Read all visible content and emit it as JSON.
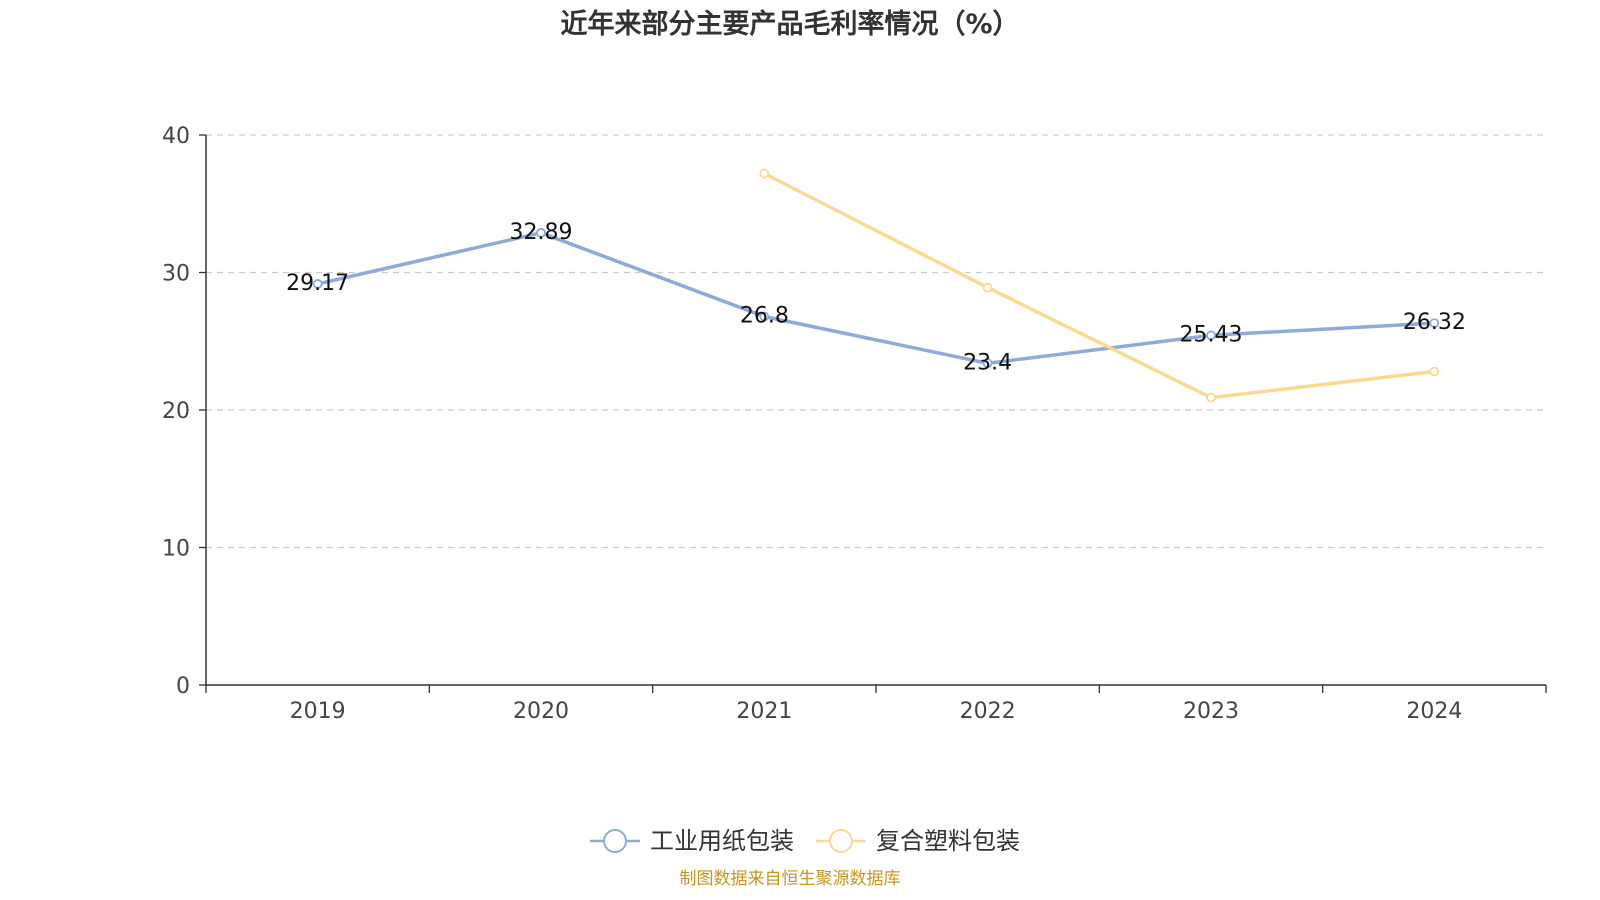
{
  "colors": {
    "series1": "#8faad8",
    "series2": "#fbd98f",
    "grid": "#cccccc",
    "axis": "#333333",
    "source": "#c8961e"
  },
  "chart_data": {
    "type": "line",
    "title": "近年来部分主要产品毛利率情况（%）",
    "categories": [
      "2019",
      "2020",
      "2021",
      "2022",
      "2023",
      "2024"
    ],
    "ylim": [
      0,
      40
    ],
    "yticks": [
      0,
      10,
      20,
      30,
      40
    ],
    "grid": true,
    "legend_position": "bottom",
    "series": [
      {
        "name": "工业用纸包装",
        "values": [
          29.17,
          32.89,
          26.8,
          23.4,
          25.43,
          26.32
        ],
        "labels": [
          "29.17",
          "32.89",
          "26.8",
          "23.4",
          "25.43",
          "26.32"
        ]
      },
      {
        "name": "复合塑料包装",
        "values": [
          null,
          null,
          37.2,
          28.9,
          20.9,
          22.8
        ],
        "labels": []
      }
    ],
    "source": "制图数据来自恒生聚源数据库"
  }
}
